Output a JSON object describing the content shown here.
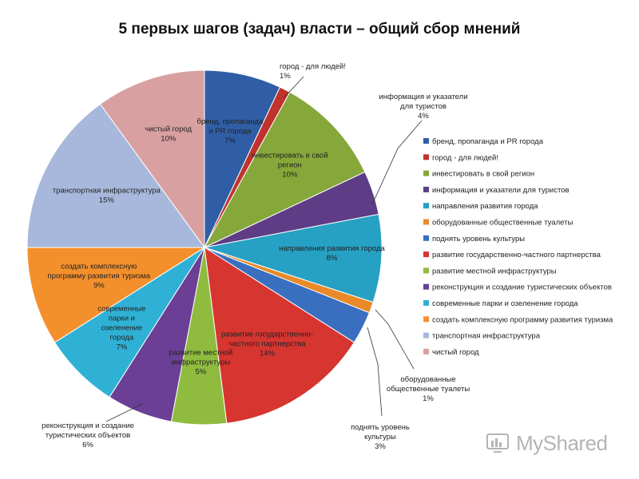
{
  "title": "5 первых шагов (задач) власти – общий сбор мнений",
  "watermark": "MyShared",
  "chart_data": {
    "type": "pie",
    "title": "5 первых шагов (задач) власти – общий сбор мнений",
    "start_angle_deg": 0,
    "direction": "clockwise",
    "legend_position": "right",
    "slices": [
      {
        "label": "бренд, пропаганда и PR города",
        "value": 7,
        "value_label": "7%",
        "color": "#2f5ea6",
        "label_lines": [
          "бренд, пропаганда",
          "и PR города",
          "7%"
        ]
      },
      {
        "label": "город - для людей!",
        "value": 1,
        "value_label": "1%",
        "color": "#c0322d",
        "label_lines": [
          "город - для людей!",
          "1%"
        ]
      },
      {
        "label": "инвестировать в свой регион",
        "value": 10,
        "value_label": "10%",
        "color": "#86a83a",
        "label_lines": [
          "инвестировать в свой",
          "регион",
          "10%"
        ]
      },
      {
        "label": "информация и указатели для туристов",
        "value": 4,
        "value_label": "4%",
        "color": "#5e3d86",
        "label_lines": [
          "информация и указатели",
          "для туристов",
          "4%"
        ]
      },
      {
        "label": "направления развития города",
        "value": 8,
        "value_label": "8%",
        "color": "#26a1c4",
        "label_lines": [
          "направления развития города",
          "8%"
        ]
      },
      {
        "label": "оборудованные общественные туалеты",
        "value": 1,
        "value_label": "1%",
        "color": "#e98a2a",
        "label_lines": [
          "оборудованные",
          "общественные туалеты",
          "1%"
        ]
      },
      {
        "label": "поднять уровень культуры",
        "value": 3,
        "value_label": "3%",
        "color": "#3a6fc0",
        "label_lines": [
          "поднять уровень",
          "культуры",
          "3%"
        ]
      },
      {
        "label": "развитие государственно-частного партнерства",
        "value": 14,
        "value_label": "14%",
        "color": "#d63530",
        "label_lines": [
          "развитие государственно-",
          "частного партнерства",
          "14%"
        ]
      },
      {
        "label": "развитие местной инфраструктуры",
        "value": 5,
        "value_label": "5%",
        "color": "#8fbc3f",
        "label_lines": [
          "развитие местной",
          "инфраструктуры",
          "5%"
        ]
      },
      {
        "label": "реконструкция и создание туристических объектов",
        "value": 6,
        "value_label": "6%",
        "color": "#6a3f95",
        "label_lines": [
          "реконструкция и создание",
          "туристических объектов",
          "6%"
        ]
      },
      {
        "label": "современные парки и озеленение города",
        "value": 7,
        "value_label": "7%",
        "color": "#2fb1d6",
        "label_lines": [
          "современные",
          "парки и",
          "озеленение",
          "города",
          "7%"
        ]
      },
      {
        "label": "создать комплексную программу развития туризма",
        "value": 9,
        "value_label": "9%",
        "color": "#f4902c",
        "label_lines": [
          "создать комплексную",
          "программу развития туризма",
          "9%"
        ]
      },
      {
        "label": "транспортная инфраструктура",
        "value": 15,
        "value_label": "15%",
        "color": "#a7b8dc",
        "label_lines": [
          "транспортная инфраструктура",
          "15%"
        ]
      },
      {
        "label": "чистый город",
        "value": 10,
        "value_label": "10%",
        "color": "#d8a0a0",
        "label_lines": [
          "чистый город",
          "10%"
        ]
      }
    ]
  }
}
